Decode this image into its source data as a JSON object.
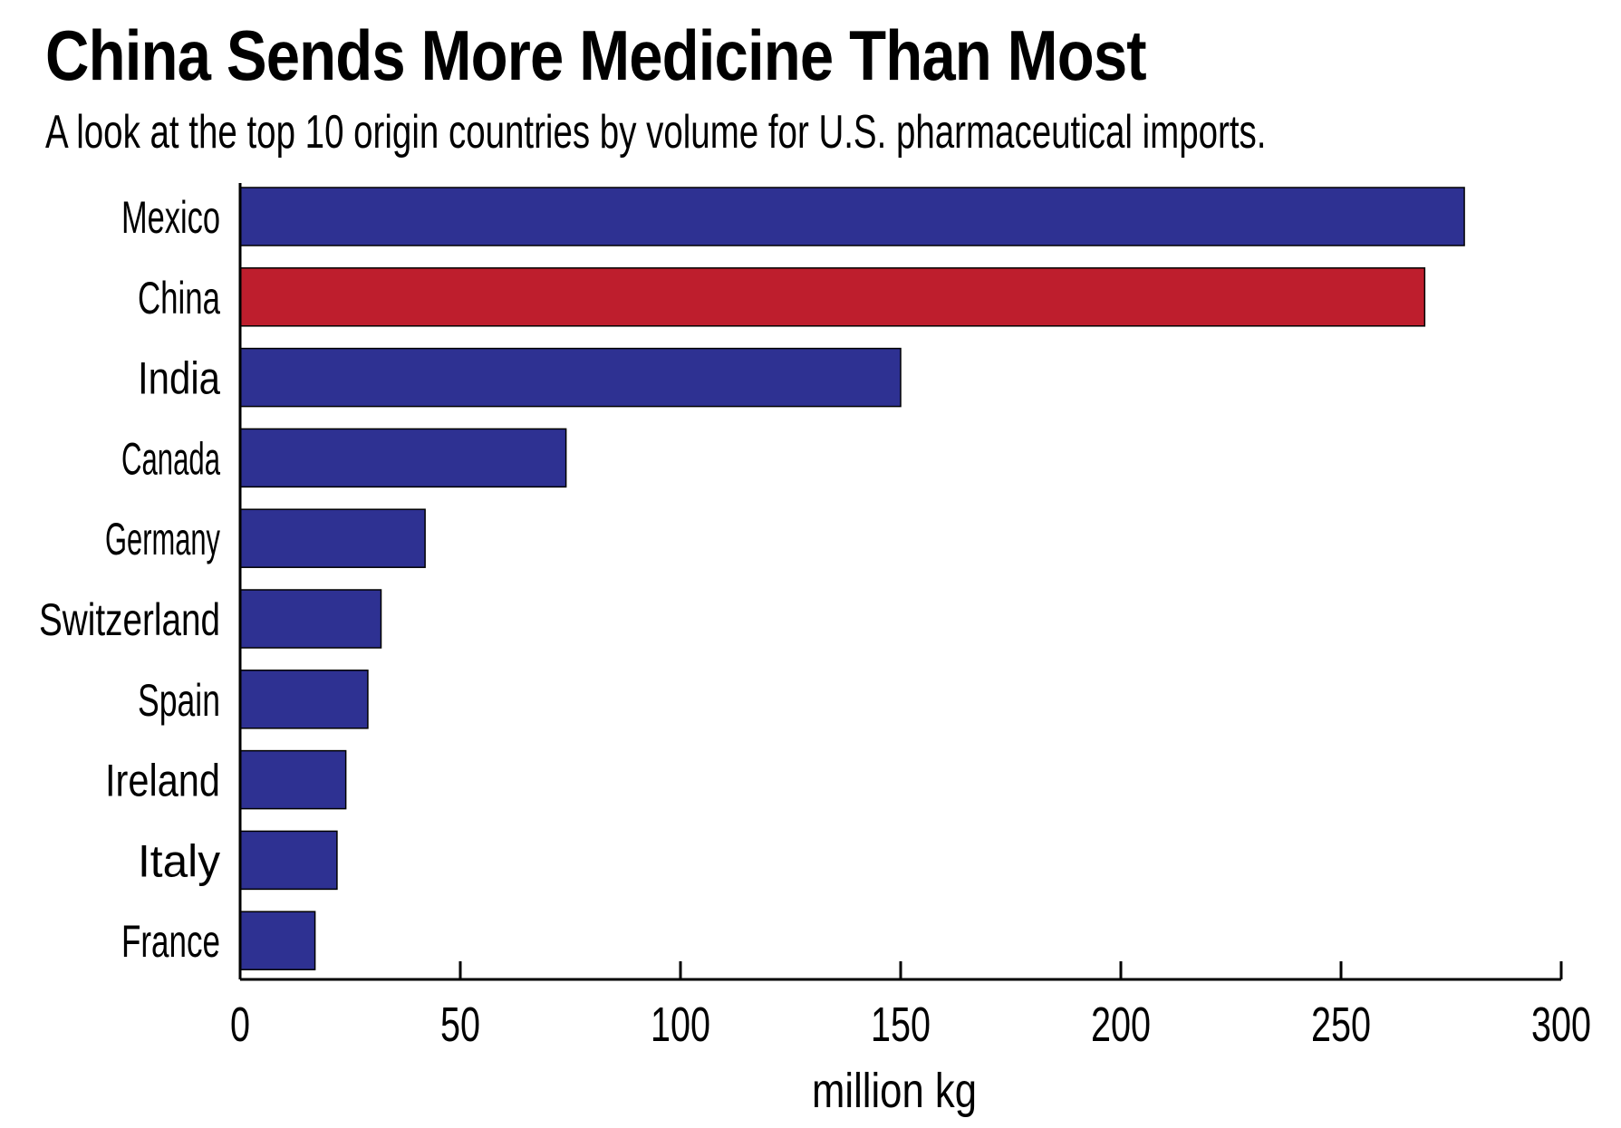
{
  "chart_data": {
    "type": "bar",
    "orientation": "horizontal",
    "title": "China Sends More Medicine Than Most",
    "subtitle": "A look at the top 10 origin countries by volume for U.S. pharmaceutical imports.",
    "categories": [
      "Mexico",
      "China",
      "India",
      "Canada",
      "Germany",
      "Switzerland",
      "Spain",
      "Ireland",
      "Italy",
      "France"
    ],
    "values": [
      278,
      269,
      150,
      74,
      42,
      32,
      29,
      24,
      22,
      17
    ],
    "bar_colors": [
      "#2e3192",
      "#be1e2d",
      "#2e3192",
      "#2e3192",
      "#2e3192",
      "#2e3192",
      "#2e3192",
      "#2e3192",
      "#2e3192",
      "#2e3192"
    ],
    "highlight_color": "#be1e2d",
    "base_color": "#2e3192",
    "xlabel": "million kg",
    "ylabel": "",
    "xlim": [
      0,
      300
    ],
    "xticks": [
      0,
      50,
      100,
      150,
      200,
      250,
      300
    ],
    "grid": false,
    "legend": "none"
  }
}
